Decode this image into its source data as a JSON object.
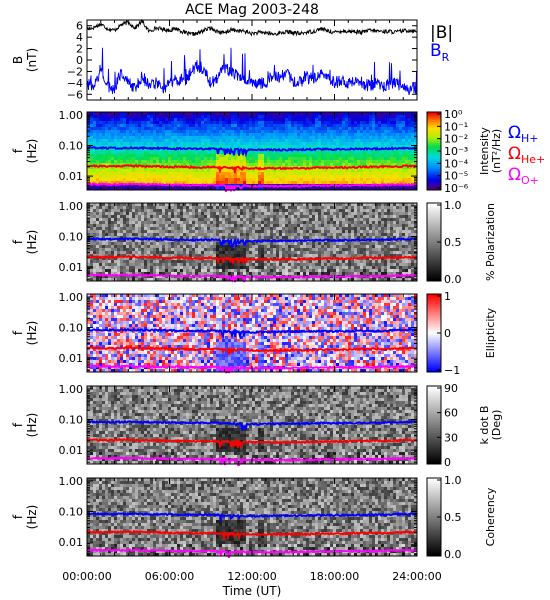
{
  "chart_data": [
    {
      "type": "line",
      "title": "ACE Mag 2003-248",
      "ylabel_main": "B",
      "ylabel_unit": "(nT)",
      "ylim": [
        -7,
        7
      ],
      "yticks": [
        -6,
        -4,
        -2,
        0,
        2,
        4,
        6
      ],
      "xlim_hours": [
        0,
        24
      ],
      "series": [
        {
          "name": "|B|",
          "color": "#000000",
          "x": [
            0,
            0.5,
            1,
            1.5,
            2,
            2.5,
            3,
            3.5,
            4,
            4.5,
            5,
            5.5,
            6,
            6.5,
            7,
            7.5,
            8,
            8.5,
            9,
            9.5,
            10,
            10.5,
            11,
            11.5,
            12,
            12.5,
            13,
            13.5,
            14,
            14.5,
            15,
            15.5,
            16,
            16.5,
            17,
            17.5,
            18,
            18.5,
            19,
            19.5,
            20,
            20.5,
            21,
            21.5,
            22,
            22.5,
            23,
            23.5,
            24
          ],
          "y": [
            5.4,
            5.7,
            6.3,
            5.5,
            5.2,
            6.2,
            6.6,
            5.6,
            6.8,
            5.0,
            5.6,
            5.4,
            5.2,
            5.5,
            4.9,
            4.5,
            4.6,
            5.2,
            5.6,
            5.0,
            4.7,
            5.3,
            5.1,
            5.0,
            4.6,
            4.8,
            4.8,
            4.5,
            4.7,
            4.9,
            4.8,
            4.6,
            4.9,
            5.0,
            5.5,
            5.1,
            4.8,
            5.1,
            5.0,
            5.0,
            4.8,
            5.2,
            5.1,
            5.0,
            5.0,
            4.9,
            5.1,
            5.2,
            5.0
          ]
        },
        {
          "name": "B_R",
          "color": "#0000ff",
          "x": [
            0,
            0.5,
            1,
            1.5,
            2,
            2.5,
            3,
            3.5,
            4,
            4.5,
            5,
            5.5,
            6,
            6.5,
            7,
            7.5,
            8,
            8.5,
            9,
            9.5,
            10,
            10.5,
            11,
            11.5,
            12,
            12.5,
            13,
            13.5,
            14,
            14.5,
            15,
            15.5,
            16,
            16.5,
            17,
            17.5,
            18,
            18.5,
            19,
            19.5,
            20,
            20.5,
            21,
            21.5,
            22,
            22.5,
            23,
            23.5,
            24
          ],
          "y": [
            -4,
            -5,
            -1.5,
            -4.5,
            -5,
            -2,
            -4,
            -5,
            -3,
            -4.5,
            -4,
            -5,
            -4,
            -3.5,
            -4,
            -2.5,
            -1,
            -1.5,
            -4,
            -3,
            -1.5,
            -2,
            -3,
            -3,
            -3.5,
            -4,
            -4,
            -2.5,
            -3,
            -2.5,
            -3.5,
            -4,
            -3,
            -3.5,
            -2,
            -2.5,
            -4,
            -3.5,
            -4,
            -4,
            -4,
            -4.5,
            -4.5,
            -4.5,
            -4.5,
            -4,
            -5,
            -5,
            -5
          ]
        }
      ]
    },
    {
      "type": "heatmap",
      "ylabel_main": "f",
      "ylabel_unit": "(Hz)",
      "ylim": [
        0.003,
        1.0
      ],
      "yscale": "log",
      "yticks": [
        "1.00",
        "0.10",
        "0.01"
      ],
      "colorbar": {
        "label": "Intensity",
        "unit": "(nT²/Hz)",
        "scale": "log",
        "min": 1e-06,
        "max": 1,
        "ticks": [
          "10⁰",
          "10⁻¹",
          "10⁻²",
          "10⁻³",
          "10⁻⁴",
          "10⁻⁵",
          "10⁻⁶"
        ],
        "map": "rainbow"
      },
      "legend": [
        {
          "name": "Ω",
          "sub": "H+",
          "color": "#0000ff"
        },
        {
          "name": "Ω",
          "sub": "He+",
          "color": "#ff0000"
        },
        {
          "name": "Ω",
          "sub": "O+",
          "color": "#ff00ff"
        }
      ]
    },
    {
      "type": "heatmap",
      "ylabel_main": "f",
      "ylabel_unit": "(Hz)",
      "yticks": [
        "1.00",
        "0.10",
        "0.01"
      ],
      "colorbar": {
        "label": "% Polarization",
        "min": 0.0,
        "max": 1.0,
        "ticks": [
          "1.0",
          "0.5",
          "0.0"
        ],
        "map": "gray"
      }
    },
    {
      "type": "heatmap",
      "ylabel_main": "f",
      "ylabel_unit": "(Hz)",
      "yticks": [
        "1.00",
        "0.10",
        "0.01"
      ],
      "colorbar": {
        "label": "Ellipticity",
        "min": -1,
        "max": 1,
        "ticks": [
          "1",
          "0",
          "−1"
        ],
        "map": "bwr"
      }
    },
    {
      "type": "heatmap",
      "ylabel_main": "f",
      "ylabel_unit": "(Hz)",
      "yticks": [
        "1.00",
        "0.10",
        "0.01"
      ],
      "colorbar": {
        "label": "k dot B",
        "unit": "(Deg)",
        "min": 0,
        "max": 90,
        "ticks": [
          "90",
          "60",
          "30",
          "0"
        ],
        "map": "gray"
      }
    },
    {
      "type": "heatmap",
      "ylabel_main": "f",
      "ylabel_unit": "(Hz)",
      "yticks": [
        "1.00",
        "0.10",
        "0.01"
      ],
      "colorbar": {
        "label": "Coherency",
        "min": 0.0,
        "max": 1.0,
        "ticks": [
          "1.0",
          "0.5",
          "0.0"
        ],
        "map": "gray"
      },
      "xlabel": "Time (UT)",
      "xticks": [
        "00:00:00",
        "06:00:00",
        "12:00:00",
        "18:00:00",
        "24:00:00"
      ]
    }
  ],
  "gyro_lines_hz": {
    "x_hours": [
      0,
      1,
      2,
      3,
      4,
      5,
      6,
      7,
      8,
      9,
      10,
      11,
      12,
      13,
      14,
      15,
      16,
      17,
      18,
      19,
      20,
      21,
      22,
      23,
      24
    ],
    "H+": [
      0.085,
      0.083,
      0.082,
      0.084,
      0.083,
      0.082,
      0.08,
      0.078,
      0.077,
      0.08,
      0.075,
      0.074,
      0.07,
      0.072,
      0.072,
      0.073,
      0.074,
      0.076,
      0.075,
      0.076,
      0.078,
      0.078,
      0.08,
      0.082,
      0.084
    ],
    "He+": [
      0.022,
      0.021,
      0.021,
      0.022,
      0.021,
      0.021,
      0.02,
      0.02,
      0.019,
      0.02,
      0.019,
      0.019,
      0.018,
      0.018,
      0.018,
      0.018,
      0.018,
      0.019,
      0.019,
      0.019,
      0.02,
      0.02,
      0.02,
      0.021,
      0.021
    ],
    "O+": [
      0.0055,
      0.0054,
      0.0053,
      0.0055,
      0.0054,
      0.0053,
      0.0052,
      0.0051,
      0.005,
      0.0051,
      0.0049,
      0.0048,
      0.0047,
      0.0047,
      0.0047,
      0.0047,
      0.0048,
      0.0049,
      0.0049,
      0.005,
      0.005,
      0.0051,
      0.0052,
      0.0053,
      0.0054
    ]
  }
}
